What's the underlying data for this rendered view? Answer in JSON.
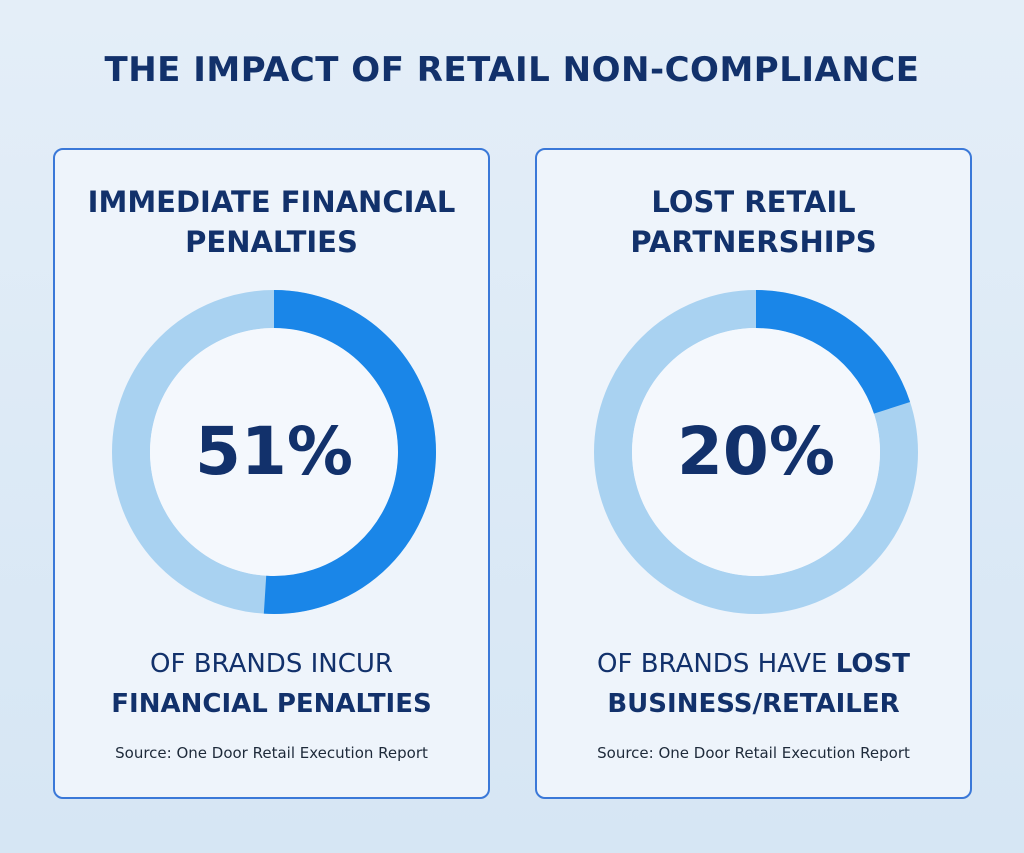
{
  "title": "THE IMPACT OF RETAIL NON-COMPLIANCE",
  "chart_data": [
    {
      "type": "donut",
      "title": "IMMEDIATE FINANCIAL PENALTIES",
      "values": [
        51
      ],
      "value_labels": [
        "51%"
      ],
      "color": "#1a86e8",
      "track_color": "#a9d2f1",
      "caption_regular": "OF BRANDS INCUR",
      "caption_bold": "FINANCIAL PENALTIES",
      "source": "Source: One Door Retail Execution Report"
    },
    {
      "type": "donut",
      "title": "LOST RETAIL PARTNERSHIPS",
      "values": [
        20
      ],
      "value_labels": [
        "20%"
      ],
      "color": "#1a86e8",
      "track_color": "#a9d2f1",
      "caption_regular": "OF BRANDS HAVE",
      "caption_bold": "LOST BUSINESS/RETAILER",
      "source": "Source: One Door Retail Execution Report"
    }
  ]
}
